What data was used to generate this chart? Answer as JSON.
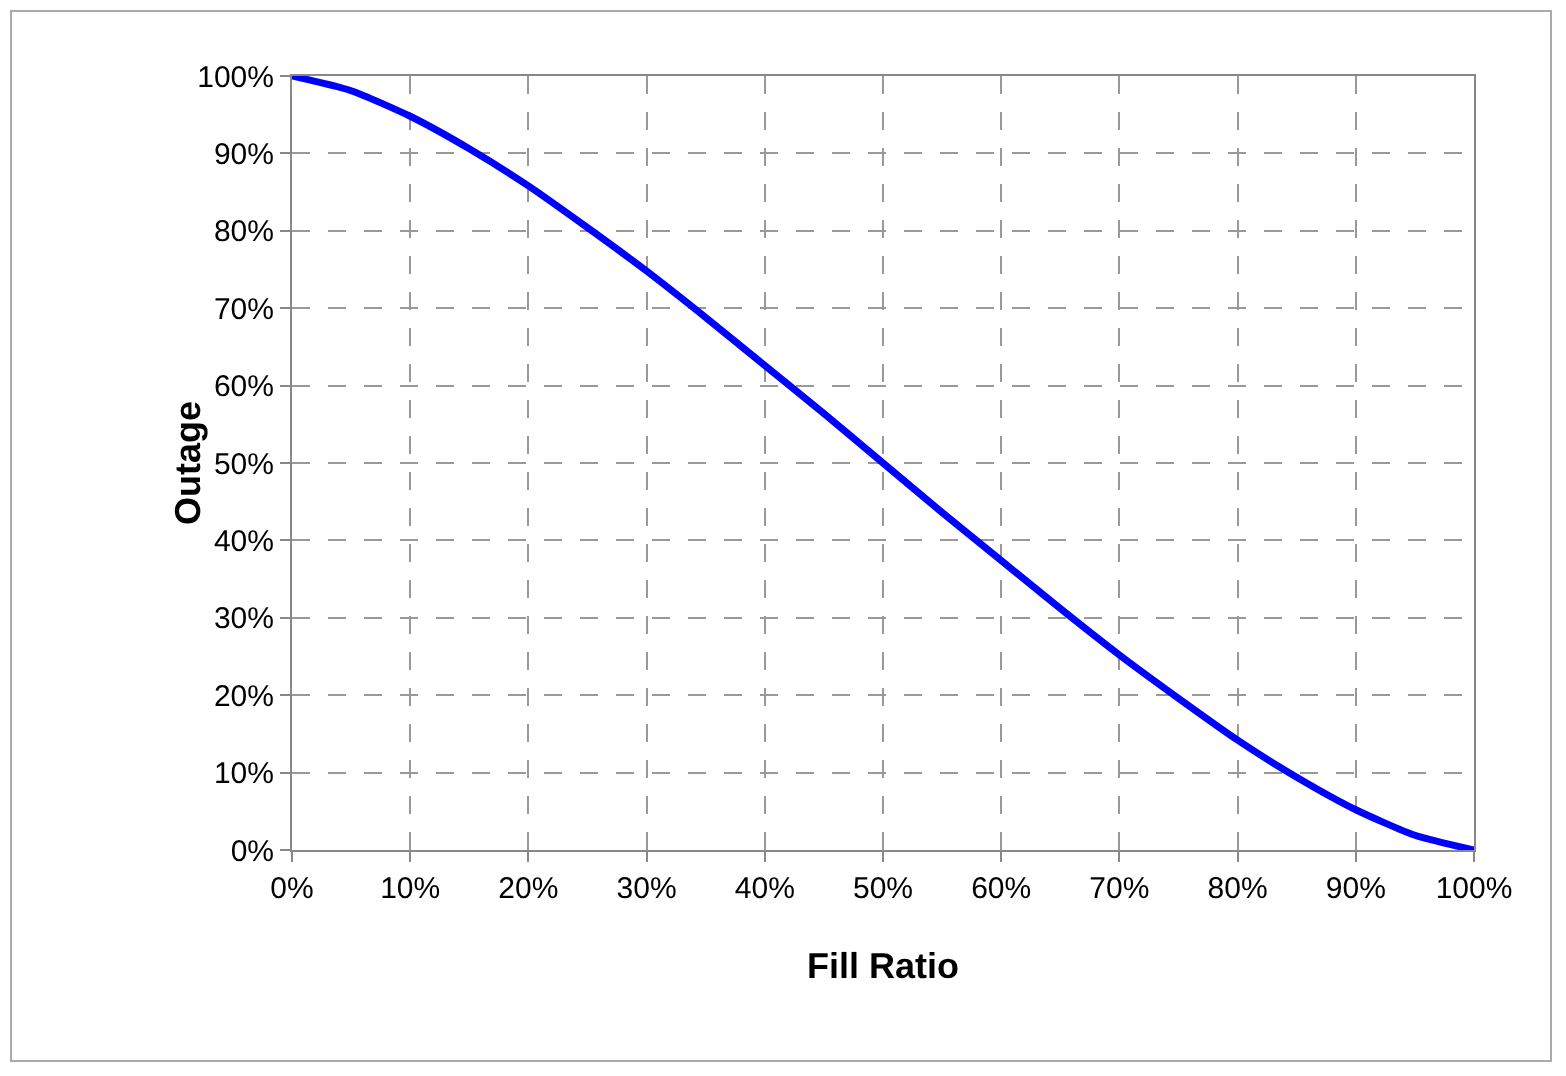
{
  "chart_data": {
    "type": "line",
    "xlabel": "Fill Ratio",
    "ylabel": "Outage",
    "x": [
      0,
      5,
      10,
      15,
      20,
      25,
      30,
      35,
      40,
      45,
      50,
      55,
      60,
      65,
      70,
      75,
      80,
      85,
      90,
      95,
      100
    ],
    "series": [
      {
        "color": "#0000ff",
        "values": [
          100,
          98.1,
          94.8,
          90.6,
          85.8,
          80.4,
          74.8,
          68.8,
          62.6,
          56.4,
          50,
          43.6,
          37.4,
          31.2,
          25.2,
          19.6,
          14.2,
          9.4,
          5.2,
          1.9,
          0
        ]
      }
    ],
    "xlim": [
      0,
      100
    ],
    "ylim": [
      0,
      100
    ],
    "xticks": [
      {
        "value": 0,
        "label": "0%"
      },
      {
        "value": 10,
        "label": "10%"
      },
      {
        "value": 20,
        "label": "20%"
      },
      {
        "value": 30,
        "label": "30%"
      },
      {
        "value": 40,
        "label": "40%"
      },
      {
        "value": 50,
        "label": "50%"
      },
      {
        "value": 60,
        "label": "60%"
      },
      {
        "value": 70,
        "label": "70%"
      },
      {
        "value": 80,
        "label": "80%"
      },
      {
        "value": 90,
        "label": "90%"
      },
      {
        "value": 100,
        "label": "100%"
      }
    ],
    "yticks": [
      {
        "value": 0,
        "label": "0%"
      },
      {
        "value": 10,
        "label": "10%"
      },
      {
        "value": 20,
        "label": "20%"
      },
      {
        "value": 30,
        "label": "30%"
      },
      {
        "value": 40,
        "label": "40%"
      },
      {
        "value": 50,
        "label": "50%"
      },
      {
        "value": 60,
        "label": "60%"
      },
      {
        "value": 70,
        "label": "70%"
      },
      {
        "value": 80,
        "label": "80%"
      },
      {
        "value": 90,
        "label": "90%"
      },
      {
        "value": 100,
        "label": "100%"
      }
    ],
    "grid": true,
    "marker": "none",
    "line_style": "solid"
  }
}
